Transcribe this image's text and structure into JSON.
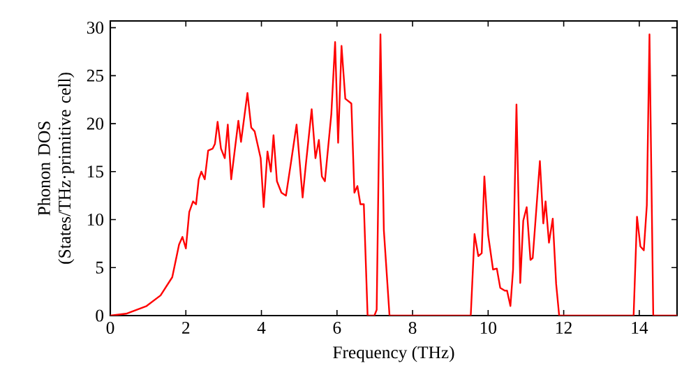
{
  "chart_data": {
    "type": "line",
    "xlabel": "Frequency (THz)",
    "ylabel": "Phonon DOS (States/THz·primitive cell)",
    "xlim": [
      0,
      15
    ],
    "ylim": [
      0,
      30.7
    ],
    "xticks": [
      0,
      2,
      4,
      6,
      8,
      10,
      12,
      14
    ],
    "yticks": [
      0,
      5,
      10,
      15,
      20,
      25,
      30
    ],
    "grid": false,
    "marker": "none",
    "line_style": "solid",
    "series": [
      {
        "color": "#ff0000",
        "x": [
          0,
          0.42,
          0.96,
          1.33,
          1.64,
          1.82,
          1.91,
          2.0,
          2.09,
          2.19,
          2.27,
          2.34,
          2.41,
          2.5,
          2.59,
          2.71,
          2.77,
          2.84,
          2.93,
          3.03,
          3.11,
          3.2,
          3.39,
          3.46,
          3.63,
          3.73,
          3.82,
          3.98,
          4.06,
          4.16,
          4.25,
          4.32,
          4.41,
          4.53,
          4.65,
          4.78,
          4.93,
          5.09,
          5.18,
          5.33,
          5.43,
          5.52,
          5.6,
          5.68,
          5.85,
          5.95,
          6.03,
          6.12,
          6.22,
          6.38,
          6.46,
          6.54,
          6.62,
          6.71,
          6.81,
          6.99,
          7.05,
          7.15,
          7.24,
          7.39,
          9.54,
          9.64,
          9.74,
          9.83,
          9.9,
          10.0,
          10.13,
          10.23,
          10.32,
          10.44,
          10.5,
          10.59,
          10.66,
          10.75,
          10.85,
          10.93,
          11.02,
          11.12,
          11.18,
          11.37,
          11.46,
          11.52,
          11.61,
          11.71,
          11.8,
          11.88,
          13.85,
          13.94,
          14.03,
          14.12,
          14.2,
          14.27,
          14.37,
          15
        ],
        "values": [
          0,
          0.2,
          1.0,
          2.1,
          4.0,
          7.4,
          8.2,
          7.0,
          10.8,
          11.9,
          11.6,
          14.2,
          15.0,
          14.2,
          17.2,
          17.4,
          17.9,
          20.2,
          17.4,
          16.4,
          19.9,
          14.2,
          20.3,
          18.1,
          23.2,
          19.6,
          19.2,
          16.4,
          11.3,
          17.1,
          15.0,
          18.8,
          14.0,
          12.8,
          12.5,
          15.9,
          19.9,
          12.3,
          15.9,
          21.5,
          16.4,
          18.3,
          14.5,
          14.0,
          21.0,
          28.5,
          18.0,
          28.1,
          22.6,
          22.1,
          12.8,
          13.5,
          11.6,
          11.6,
          0,
          0,
          0.6,
          29.3,
          8.9,
          0,
          0,
          8.5,
          6.2,
          6.5,
          14.5,
          8.4,
          4.8,
          4.9,
          2.9,
          2.6,
          2.6,
          1.0,
          4.8,
          22.0,
          3.4,
          9.9,
          11.3,
          5.8,
          6.0,
          16.1,
          9.6,
          11.9,
          7.6,
          10.1,
          3.3,
          0,
          0,
          10.3,
          7.2,
          6.8,
          11.5,
          29.3,
          0,
          0
        ]
      }
    ]
  }
}
